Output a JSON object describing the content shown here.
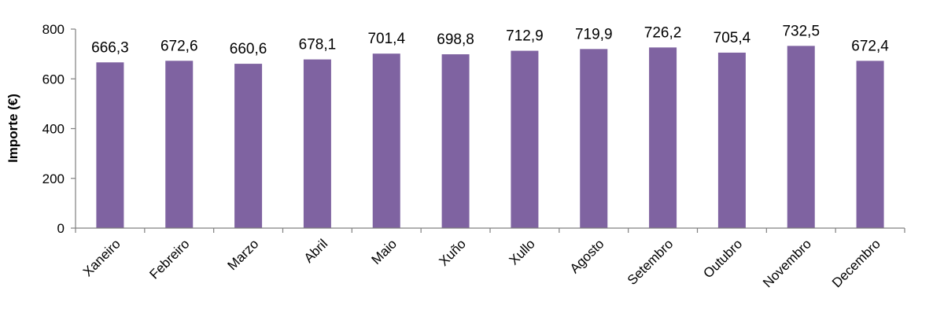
{
  "chart_data": {
    "type": "bar",
    "title": "",
    "xlabel": "",
    "ylabel": "Importe (€)",
    "categories": [
      "Xaneiro",
      "Febreiro",
      "Marzo",
      "Abril",
      "Maio",
      "Xuño",
      "Xullo",
      "Agosto",
      "Setembro",
      "Outubro",
      "Novembro",
      "Decembro"
    ],
    "values": [
      666.3,
      672.6,
      660.6,
      678.1,
      701.4,
      698.8,
      712.9,
      719.9,
      726.2,
      705.4,
      732.5,
      672.4
    ],
    "value_labels": [
      "666,3",
      "672,6",
      "660,6",
      "678,1",
      "701,4",
      "698,8",
      "712,9",
      "719,9",
      "726,2",
      "705,4",
      "732,5",
      "672,4"
    ],
    "ylim": [
      0,
      800
    ],
    "yticks": [
      0,
      200,
      400,
      600,
      800
    ],
    "ytick_labels": [
      "0",
      "200",
      "400",
      "600",
      "800"
    ],
    "grid": false,
    "legend": "none",
    "bar_color": "#7f63a1",
    "axis_color": "#808080"
  }
}
